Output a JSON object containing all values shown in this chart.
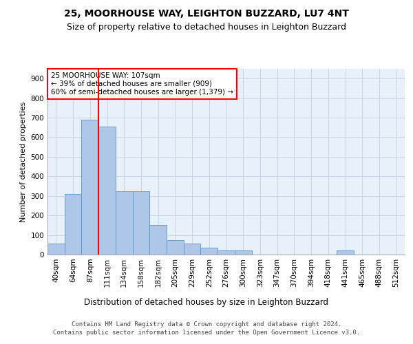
{
  "title1": "25, MOORHOUSE WAY, LEIGHTON BUZZARD, LU7 4NT",
  "title2": "Size of property relative to detached houses in Leighton Buzzard",
  "xlabel": "Distribution of detached houses by size in Leighton Buzzard",
  "ylabel": "Number of detached properties",
  "footer": "Contains HM Land Registry data © Crown copyright and database right 2024.\nContains public sector information licensed under the Open Government Licence v3.0.",
  "bin_labels": [
    "40sqm",
    "64sqm",
    "87sqm",
    "111sqm",
    "134sqm",
    "158sqm",
    "182sqm",
    "205sqm",
    "229sqm",
    "252sqm",
    "276sqm",
    "300sqm",
    "323sqm",
    "347sqm",
    "370sqm",
    "394sqm",
    "418sqm",
    "441sqm",
    "465sqm",
    "488sqm",
    "512sqm"
  ],
  "bar_values": [
    55,
    310,
    690,
    655,
    325,
    325,
    150,
    75,
    55,
    35,
    20,
    20,
    0,
    0,
    0,
    0,
    0,
    20,
    0,
    0,
    0
  ],
  "bar_color": "#aec6e8",
  "bar_edgecolor": "#5a96c8",
  "vline_color": "red",
  "vline_pos": 2.5,
  "annotation_text": "25 MOORHOUSE WAY: 107sqm\n← 39% of detached houses are smaller (909)\n60% of semi-detached houses are larger (1,379) →",
  "annotation_box_color": "white",
  "annotation_box_edgecolor": "red",
  "ylim": [
    0,
    950
  ],
  "yticks": [
    0,
    100,
    200,
    300,
    400,
    500,
    600,
    700,
    800,
    900
  ],
  "grid_color": "#c8d4e8",
  "bg_color": "#e8f0fa",
  "title1_fontsize": 10,
  "title2_fontsize": 9,
  "xlabel_fontsize": 8.5,
  "ylabel_fontsize": 8,
  "tick_fontsize": 7.5,
  "footer_fontsize": 6.5,
  "annot_fontsize": 7.5
}
